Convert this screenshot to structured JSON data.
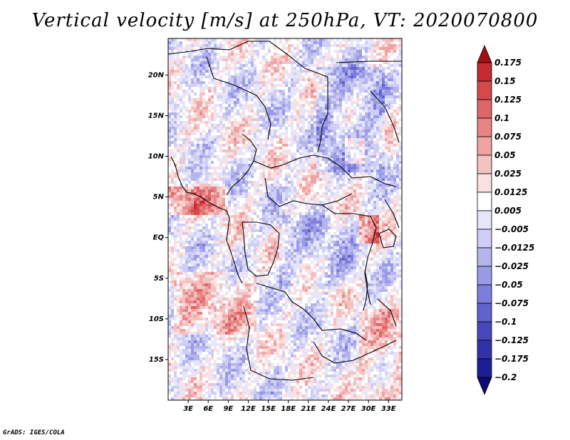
{
  "title": "Vertical velocity [m/s] at 250hPa, VT: 2020070800",
  "footer": "GrADS: IGES/COLA",
  "map": {
    "region": "Central Africa",
    "lon_range": [
      0,
      35
    ],
    "lat_range": [
      -20,
      24.5
    ],
    "lat_ticks": [
      "20N",
      "15N",
      "10N",
      "5N",
      "EQ",
      "5S",
      "10S",
      "15S"
    ],
    "lon_ticks": [
      "3E",
      "6E",
      "9E",
      "12E",
      "15E",
      "18E",
      "21E",
      "24E",
      "27E",
      "30E",
      "33E"
    ]
  },
  "colorbar": {
    "labels": [
      "0.175",
      "0.15",
      "0.125",
      "0.1",
      "0.075",
      "0.05",
      "0.025",
      "0.0125",
      "0.005",
      "−0.005",
      "−0.0125",
      "−0.025",
      "−0.05",
      "−0.075",
      "−0.1",
      "−0.125",
      "−0.175",
      "−0.2"
    ],
    "colors": [
      "#b01820",
      "#c52c32",
      "#d44a4c",
      "#de6666",
      "#e78585",
      "#efa3a3",
      "#f5c2c2",
      "#fae0e0",
      "#ffffff",
      "#e6e6fb",
      "#cfcff5",
      "#b5b5ee",
      "#9a9ae6",
      "#7d7ddb",
      "#6262ce",
      "#4848bc",
      "#3232a8",
      "#1e1e94",
      "#101080"
    ],
    "top_arrow_color": "#a01015",
    "bottom_arrow_color": "#0a0a70"
  }
}
